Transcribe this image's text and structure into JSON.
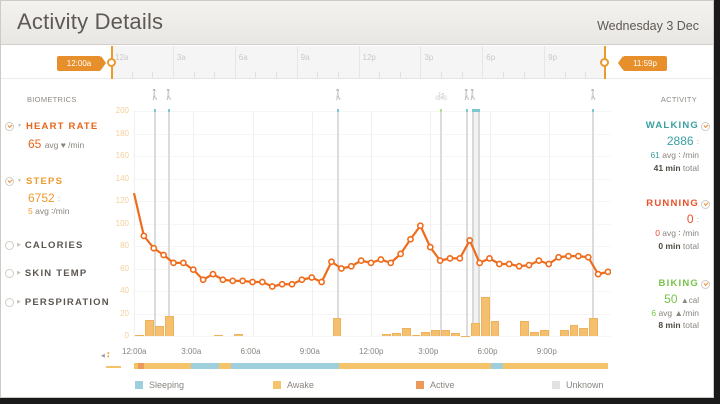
{
  "header": {
    "title": "Activity Details",
    "date": "Wednesday 3 Dec"
  },
  "timeline": {
    "start_handle": "12:00a",
    "end_handle": "11:59p",
    "ticks": [
      "12a",
      "3a",
      "6a",
      "9a",
      "12p",
      "3p",
      "6p",
      "9p"
    ]
  },
  "biometrics": {
    "heading": "BIOMETRICS",
    "heart_rate": {
      "label": "HEART RATE",
      "value": "65",
      "unit": "avg ♥ /min",
      "checked": true,
      "color": "#e8651a"
    },
    "steps": {
      "label": "STEPS",
      "value": "6752",
      "value_unit": "∶",
      "avg": "5",
      "avg_unit": "avg ∶/min",
      "checked": true,
      "color": "#ee9a2e"
    },
    "calories": {
      "label": "CALORIES",
      "checked": false
    },
    "skin_temp": {
      "label": "SKIN TEMP",
      "checked": false
    },
    "perspiration": {
      "label": "PERSPIRATION",
      "checked": false
    }
  },
  "activity": {
    "heading": "ACTIVITY",
    "walking": {
      "label": "WALKING",
      "value": "2886",
      "value_unit": "∶",
      "avg": "61",
      "avg_unit": "avg ∶ /min",
      "minutes": "41 min",
      "total_label": "total",
      "color": "#3a9fa0"
    },
    "running": {
      "label": "RUNNING",
      "value": "0",
      "value_unit": "∶",
      "avg": "0",
      "avg_unit": "avg ∶ /min",
      "minutes": "0 min",
      "total_label": "total",
      "color": "#e9502a"
    },
    "biking": {
      "label": "BIKING",
      "value": "50",
      "value_unit": "▲cal",
      "avg": "6",
      "avg_unit": "avg ▲/min",
      "minutes": "8 min",
      "total_label": "total",
      "color": "#77c24a"
    }
  },
  "legend": {
    "sleeping": {
      "label": "Sleeping",
      "color": "#9dd0dc"
    },
    "awake": {
      "label": "Awake",
      "color": "#f5c46a"
    },
    "active": {
      "label": "Active",
      "color": "#eb9a5c"
    },
    "unknown": {
      "label": "Unknown",
      "color": "#e2e2e2"
    }
  },
  "chart_data": {
    "type": "line",
    "title": "Activity Details - Heart Rate and Steps",
    "xlabel": "",
    "ylabel": "",
    "ylim": [
      0,
      200
    ],
    "y_ticks": [
      0,
      20,
      40,
      60,
      80,
      100,
      120,
      140,
      160,
      180,
      200
    ],
    "x_ticks": [
      "12:00a",
      "3:00a",
      "6:00a",
      "9:00a",
      "12:00p",
      "3:00p",
      "6:00p",
      "9:00p"
    ],
    "series": [
      {
        "name": "Heart Rate",
        "type": "line",
        "color": "#ef6c1c",
        "x_hours": [
          0,
          0.5,
          1,
          1.5,
          2,
          2.5,
          3,
          3.5,
          4,
          4.5,
          5,
          5.5,
          6,
          6.5,
          7,
          7.5,
          8,
          8.5,
          9,
          9.5,
          10,
          10.5,
          11,
          11.5,
          12,
          12.5,
          13,
          13.5,
          14,
          14.5,
          15,
          15.5,
          16,
          16.5,
          17,
          17.5,
          18,
          18.5,
          19,
          19.5,
          20,
          20.5,
          21,
          21.5,
          22,
          22.5,
          23,
          23.5,
          24
        ],
        "values": [
          127,
          89,
          78,
          72,
          65,
          65,
          59,
          50,
          55,
          50,
          49,
          49,
          48,
          48,
          44,
          46,
          46,
          50,
          52,
          48,
          66,
          60,
          62,
          67,
          65,
          68,
          65,
          73,
          86,
          98,
          79,
          67,
          69,
          69,
          85,
          65,
          69,
          64,
          64,
          62,
          63,
          67,
          64,
          70,
          71,
          71,
          70,
          55,
          57
        ]
      },
      {
        "name": "Steps",
        "type": "bar",
        "color": "#f4c06f",
        "x_hours": [
          0,
          0.5,
          1,
          1.5,
          4,
          5,
          10,
          12.5,
          13,
          13.5,
          14,
          14.5,
          15,
          15.5,
          16,
          16.5,
          17,
          17.5,
          18,
          19.5,
          20,
          20.5,
          21.5,
          22,
          22.5,
          23
        ],
        "values": [
          1,
          14,
          9,
          18,
          1,
          2,
          16,
          2,
          3,
          7,
          0.5,
          4,
          5,
          5,
          3,
          0,
          12,
          35,
          13,
          13,
          4,
          5,
          5,
          10,
          7,
          16
        ]
      }
    ],
    "activity_markers": [
      {
        "type": "walking",
        "hour": 1.0
      },
      {
        "type": "walking",
        "hour": 1.7
      },
      {
        "type": "walking",
        "hour": 10.3
      },
      {
        "type": "biking",
        "hour": 15.5
      },
      {
        "type": "walking",
        "hour": 16.8
      },
      {
        "type": "walking",
        "hour": 17.1,
        "end_hour": 17.5
      },
      {
        "type": "walking",
        "hour": 23.2
      }
    ],
    "daily_state": [
      {
        "state": "awake",
        "from": 0,
        "to": 0.2
      },
      {
        "state": "active",
        "from": 0.2,
        "to": 0.5
      },
      {
        "state": "awake",
        "from": 0.5,
        "to": 2.9
      },
      {
        "state": "sleeping",
        "from": 2.9,
        "to": 4.3
      },
      {
        "state": "awake",
        "from": 4.3,
        "to": 4.9
      },
      {
        "state": "sleeping",
        "from": 4.9,
        "to": 10.4
      },
      {
        "state": "awake",
        "from": 10.4,
        "to": 18.1
      },
      {
        "state": "sleeping",
        "from": 18.1,
        "to": 18.7
      },
      {
        "state": "awake",
        "from": 18.7,
        "to": 24
      }
    ]
  }
}
